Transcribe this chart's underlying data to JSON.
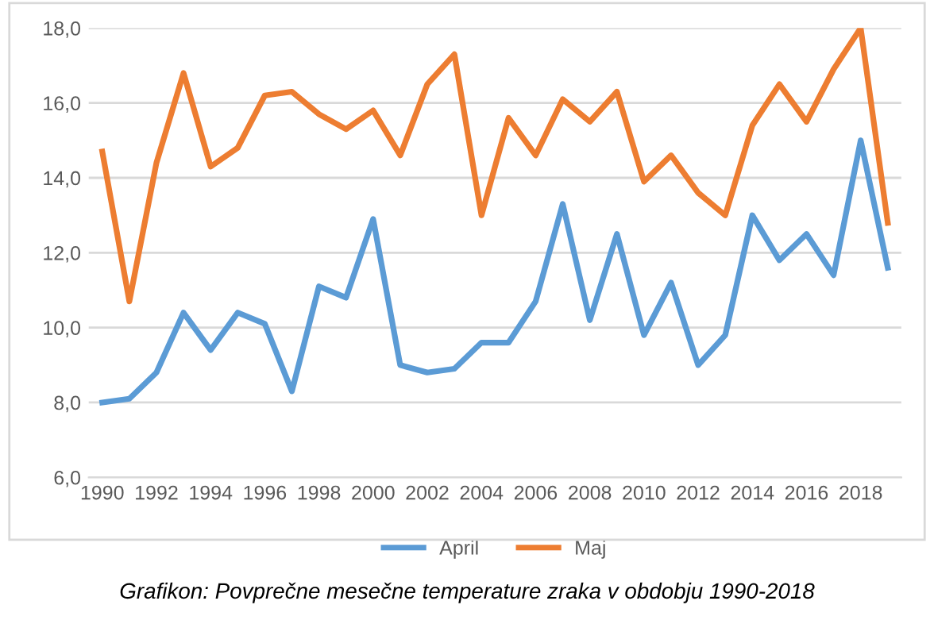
{
  "chart_data": {
    "type": "line",
    "categories": [
      "1990",
      null,
      "1992",
      null,
      "1994",
      null,
      "1996",
      null,
      "1998",
      null,
      "2000",
      null,
      "2002",
      null,
      "2004",
      null,
      "2006",
      null,
      "2008",
      null,
      "2010",
      null,
      "2012",
      null,
      "2014",
      null,
      "2016",
      null,
      "2018",
      null
    ],
    "series": [
      {
        "name": "April",
        "color": "#5b9bd5",
        "values": [
          8.0,
          8.1,
          8.8,
          10.4,
          9.4,
          10.4,
          10.1,
          8.3,
          11.1,
          10.8,
          12.9,
          9.0,
          8.8,
          8.9,
          9.6,
          9.6,
          10.7,
          13.3,
          10.2,
          12.5,
          9.8,
          11.2,
          9.0,
          9.8,
          13.0,
          11.8,
          12.5,
          11.4,
          15.0,
          11.6
        ]
      },
      {
        "name": "Maj",
        "color": "#ed7d31",
        "values": [
          14.7,
          10.7,
          14.4,
          16.8,
          14.3,
          14.8,
          16.2,
          16.3,
          15.7,
          15.3,
          15.8,
          14.6,
          16.5,
          17.3,
          13.0,
          15.6,
          14.6,
          16.1,
          15.5,
          16.3,
          13.9,
          14.6,
          13.6,
          13.0,
          15.4,
          16.5,
          15.5,
          16.9,
          18.0,
          12.8
        ]
      }
    ],
    "ylim": [
      6,
      18
    ],
    "yticks": [
      {
        "value": 6,
        "label": "6,0"
      },
      {
        "value": 8,
        "label": "8,0"
      },
      {
        "value": 10,
        "label": "10,0"
      },
      {
        "value": 12,
        "label": "12,0"
      },
      {
        "value": 14,
        "label": "14,0"
      },
      {
        "value": 16,
        "label": "16,0"
      },
      {
        "value": 18,
        "label": "18,0"
      }
    ],
    "grid": "y",
    "legend": "bottom",
    "marker": "none",
    "line_style": "solid",
    "annotations": [
      "Grafikon: Povprečne mesečne temperature zraka v obdobju 1990-2018"
    ]
  }
}
